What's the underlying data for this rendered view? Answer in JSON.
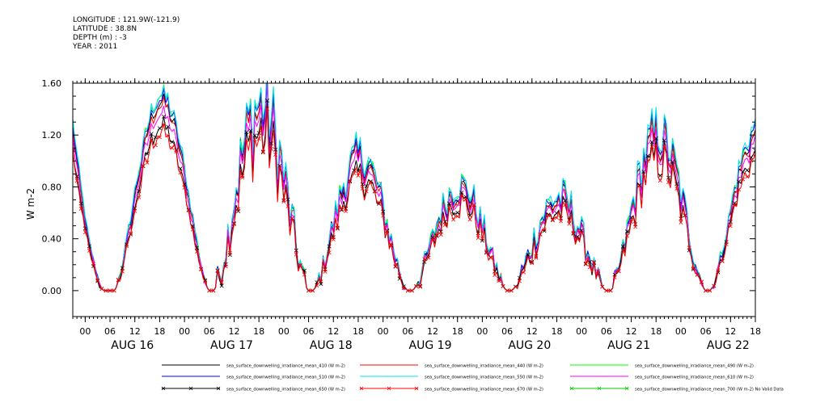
{
  "header": {
    "lines": [
      "LONGITUDE : 121.9W(-121.9)",
      "LATITUDE : 38.8N",
      "DEPTH (m) : -3",
      "YEAR : 2011"
    ]
  },
  "chart_data": {
    "type": "line",
    "title": "",
    "xlabel": "",
    "ylabel": "W m-2",
    "ylim": [
      -0.2,
      1.6
    ],
    "yticks": [
      "0.00",
      "0.40",
      "0.80",
      "1.20",
      "1.60"
    ],
    "ytick_values": [
      0.0,
      0.4,
      0.8,
      1.2,
      1.6
    ],
    "x_start_hour": -3,
    "x_end_hour": 162,
    "x_unit": "hours since 2011-08-16 00:00",
    "xtick_hour_labels": [
      "00",
      "06",
      "12",
      "18",
      "00",
      "06",
      "12",
      "18",
      "00",
      "06",
      "12",
      "18",
      "00",
      "06",
      "12",
      "18",
      "00",
      "06",
      "12",
      "18",
      "00",
      "06",
      "12",
      "18",
      "00",
      "06",
      "12",
      "18"
    ],
    "xtick_hours": [
      0,
      6,
      12,
      18,
      24,
      30,
      36,
      42,
      48,
      54,
      60,
      66,
      72,
      78,
      84,
      90,
      96,
      102,
      108,
      114,
      120,
      126,
      132,
      138,
      144,
      150,
      156,
      162
    ],
    "day_labels": [
      "AUG 16",
      "AUG 17",
      "AUG 18",
      "AUG 19",
      "AUG 20",
      "AUG 21",
      "AUG 22"
    ],
    "day_label_hours": [
      12,
      36,
      60,
      84,
      108,
      132,
      156
    ],
    "daily_peaks": [
      {
        "day": "AUG 16",
        "noon_hour": 19,
        "peak": 1.5,
        "start_hour": 7,
        "end_hour": 30,
        "noise": 0.04
      },
      {
        "day": "AUG 17",
        "noon_hour": 43,
        "peak": 1.45,
        "start_hour": 31,
        "end_hour": 54,
        "noise": 0.18
      },
      {
        "day": "AUG 18",
        "noon_hour": 67,
        "peak": 1.05,
        "start_hour": 55,
        "end_hour": 78,
        "noise": 0.1
      },
      {
        "day": "AUG 19",
        "noon_hour": 91,
        "peak": 0.82,
        "start_hour": 79,
        "end_hour": 102,
        "noise": 0.1
      },
      {
        "day": "AUG 20",
        "noon_hour": 115,
        "peak": 0.72,
        "start_hour": 103,
        "end_hour": 126,
        "noise": 0.12
      },
      {
        "day": "AUG 21",
        "noon_hour": 139,
        "peak": 1.22,
        "start_hour": 127,
        "end_hour": 150,
        "noise": 0.12
      },
      {
        "day": "AUG 22",
        "noon_hour": 163,
        "peak": 1.25,
        "start_hour": 151,
        "end_hour": 174,
        "noise": 0.06
      }
    ],
    "initial_value": 1.3,
    "series": [
      {
        "name": "sea_surface_downwelling_irradiance_mean_410 (W m-2)",
        "color": "#000000",
        "marker": "none",
        "scale": 0.96
      },
      {
        "name": "sea_surface_downwelling_irradiance_mean_440 (W m-2)",
        "color": "#ff0000",
        "marker": "none",
        "scale": 0.95
      },
      {
        "name": "sea_surface_downwelling_irradiance_mean_490 (W m-2)",
        "color": "#00ff00",
        "marker": "none",
        "scale": 1.0
      },
      {
        "name": "sea_surface_downwelling_irradiance_mean_510 (W m-2)",
        "color": "#0000ff",
        "marker": "none",
        "scale": 0.99
      },
      {
        "name": "sea_surface_downwelling_irradiance_mean_550 (W m-2)",
        "color": "#00e5ee",
        "marker": "none",
        "scale": 1.01
      },
      {
        "name": "sea_surface_downwelling_irradiance_mean_610 (W m-2)",
        "color": "#ff00ff",
        "marker": "none",
        "scale": 0.91
      },
      {
        "name": "sea_surface_downwelling_irradiance_mean_650 (W m-2)",
        "color": "#000000",
        "marker": "x",
        "scale": 0.84
      },
      {
        "name": "sea_surface_downwelling_irradiance_mean_670 (W m-2)",
        "color": "#ff0000",
        "marker": "x",
        "scale": 0.81
      },
      {
        "name": "sea_surface_downwelling_irradiance_mean_700 (W m-2) No Valid Data",
        "color": "#00cc00",
        "marker": "x",
        "scale": 0,
        "no_data": true
      }
    ],
    "legend_placement": "bottom",
    "grid": false
  }
}
